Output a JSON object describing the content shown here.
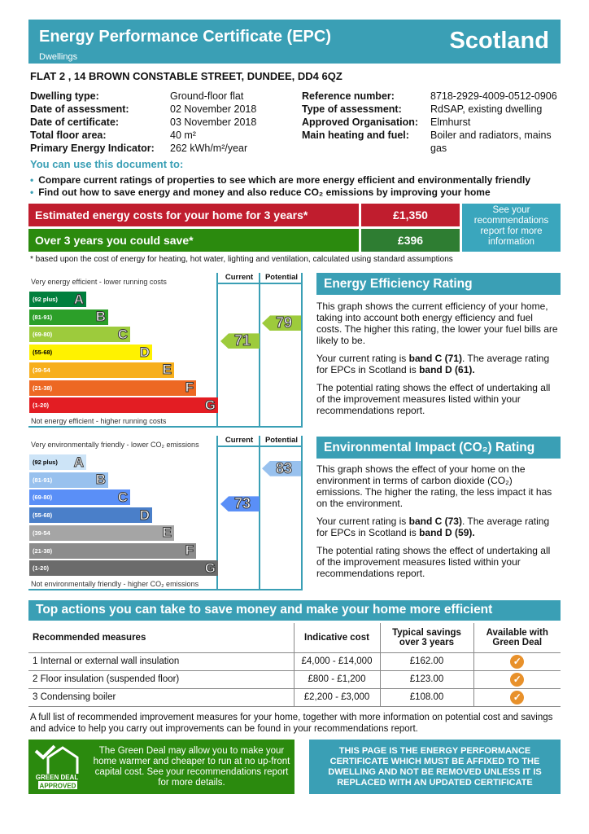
{
  "header": {
    "title": "Energy Performance Certificate (EPC)",
    "subtitle": "Dwellings",
    "region": "Scotland"
  },
  "address": "FLAT 2 , 14 BROWN CONSTABLE STREET, DUNDEE, DD4 6QZ",
  "details_left": [
    {
      "label": "Dwelling type:",
      "value": "Ground-floor flat"
    },
    {
      "label": "Date of assessment:",
      "value": "02 November 2018"
    },
    {
      "label": "Date of certificate:",
      "value": "03 November 2018"
    },
    {
      "label": "Total floor area:",
      "value": "40 m²"
    },
    {
      "label": "Primary Energy Indicator:",
      "value": "262 kWh/m²/year"
    }
  ],
  "details_right": [
    {
      "label": "Reference number:",
      "value": "8718-2929-4009-0512-0906"
    },
    {
      "label": "Type of assessment:",
      "value": "RdSAP, existing dwelling"
    },
    {
      "label": "Approved Organisation:",
      "value": "Elmhurst"
    },
    {
      "label": "Main heating and fuel:",
      "value": "Boiler and radiators, mains gas"
    }
  ],
  "use_heading": "You can use this document to:",
  "bullets": [
    "Compare current ratings of properties to see which are more energy efficient and environmentally friendly",
    "Find out how to save energy and money and also reduce CO₂ emissions by improving your home"
  ],
  "costs": {
    "estimated_label": "Estimated energy costs for your home for 3 years*",
    "estimated_value": "£1,350",
    "save_label": "Over 3 years you could save*",
    "save_value": "£396",
    "see_more": "See your recommendations report for more information",
    "footnote": "* based upon the cost of energy for heating, hot water, lighting and ventilation, calculated using standard assumptions"
  },
  "bands": [
    {
      "letter": "A",
      "range": "(92 plus)"
    },
    {
      "letter": "B",
      "range": "(81-91)"
    },
    {
      "letter": "C",
      "range": "(69-80)"
    },
    {
      "letter": "D",
      "range": "(55-68)"
    },
    {
      "letter": "E",
      "range": "(39-54"
    },
    {
      "letter": "F",
      "range": "(21-38)"
    },
    {
      "letter": "G",
      "range": "(1-20)"
    }
  ],
  "energy_chart": {
    "top_caption": "Very energy efficient - lower running costs",
    "bottom_caption": "Not energy efficient - higher running costs",
    "current_label": "Current",
    "potential_label": "Potential",
    "current": 71,
    "potential": 79,
    "colors": [
      "#007f3d",
      "#2c9f29",
      "#9dcb3c",
      "#fff200",
      "#f7af1d",
      "#ed6823",
      "#e31d23"
    ],
    "current_color": "#9dcb3c",
    "potential_color": "#9dcb3c"
  },
  "env_chart": {
    "top_caption": "Very environmentally friendly - lower CO₂ emissions",
    "bottom_caption": "Not environmentally friendly - higher CO₂ emissions",
    "current_label": "Current",
    "potential_label": "Potential",
    "current": 73,
    "potential": 83,
    "colors": [
      "#cde4f7",
      "#98c1ee",
      "#5a8ff7",
      "#4a7fc9",
      "#a5a5a5",
      "#8c8c8c",
      "#6b6b6b"
    ],
    "current_color": "#5a8ff7",
    "potential_color": "#98c1ee"
  },
  "eer": {
    "title": "Energy Efficiency Rating",
    "p1": "This graph shows the current efficiency of your home, taking into account both energy efficiency and fuel costs. The higher this rating, the lower your fuel bills are likely to be.",
    "p2a": "Your current rating is ",
    "p2b": "band C (71)",
    "p2c": ". The average rating for EPCs in Scotland is ",
    "p2d": "band D (61).",
    "p3": "The potential rating shows the effect of undertaking all of the improvement measures listed within your recommendations report."
  },
  "eir": {
    "title": "Environmental Impact (CO₂) Rating",
    "p1": "This graph shows the effect of your home on the environment in terms of carbon dioxide (CO₂) emissions. The higher the rating, the less impact it has on the environment.",
    "p2a": "Your current rating is ",
    "p2b": "band C (73)",
    "p2c": ". The average rating for EPCs in Scotland is ",
    "p2d": "band D (59).",
    "p3": "The potential rating shows the effect of undertaking all of the improvement measures listed within your recommendations report."
  },
  "actions": {
    "title": "Top actions you can take to save money and make your home more efficient",
    "headers": [
      "Recommended measures",
      "Indicative cost",
      "Typical savings over 3 years",
      "Available with Green Deal"
    ],
    "rows": [
      [
        "1 Internal or external wall insulation",
        "£4,000 - £14,000",
        "£162.00"
      ],
      [
        "2 Floor insulation (suspended floor)",
        "£800 - £1,200",
        "£123.00"
      ],
      [
        "3 Condensing boiler",
        "£2,200 - £3,000",
        "£108.00"
      ]
    ]
  },
  "full_list": "A full list of recommended improvement measures for your home, together with more information on potential cost and savings and advice to help you carry out improvements can be found in your recommendations report.",
  "green_deal": {
    "logo_line1": "GREEN DEAL",
    "logo_line2": "APPROVED",
    "text": "The Green Deal may allow you to make your home warmer and cheaper to run at no up-front capital cost. See your recommendations report for more details."
  },
  "page_notice": "THIS PAGE IS THE ENERGY PERFORMANCE CERTIFICATE WHICH MUST BE AFFIXED TO THE DWELLING AND NOT BE REMOVED UNLESS IT IS REPLACED WITH AN UPDATED CERTIFICATE"
}
